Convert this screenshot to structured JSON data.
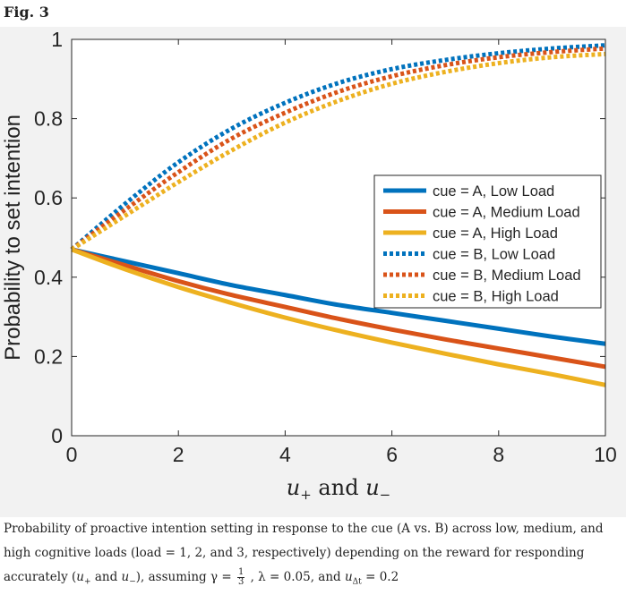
{
  "figure_label": "Fig. 3",
  "caption": {
    "line1": "Probability of proactive intention setting in response to the cue (A vs. B) across low, medium, and",
    "line2": "high cognitive loads (load = 1, 2, and 3, respectively) depending on the reward for responding",
    "line3_a": "accurately (",
    "u_plus": "u",
    "u_plus_sub": "+",
    "and_word": " and ",
    "u_minus": "u",
    "u_minus_sub": "−",
    "line3_b": "), assuming γ = ",
    "frac_num": "1",
    "frac_den": "3",
    "line3_c": " , λ = 0.05, and ",
    "u_dt": "u",
    "u_dt_sub": "Δt",
    "line3_d": " = 0.2"
  },
  "chart_data": {
    "type": "line",
    "title": "",
    "xlabel": "u₊ and u₋",
    "ylabel": "Probability to set intention",
    "xlim": [
      0,
      10
    ],
    "ylim": [
      0,
      1
    ],
    "xticks": [
      0,
      2,
      4,
      6,
      8,
      10
    ],
    "yticks": [
      0,
      0.2,
      0.4,
      0.6,
      0.8,
      1
    ],
    "xtick_labels": [
      "0",
      "2",
      "4",
      "6",
      "8",
      "10"
    ],
    "ytick_labels": [
      "0",
      "0.2",
      "0.4",
      "0.6",
      "0.8",
      "1"
    ],
    "grid": false,
    "legend_position": "right",
    "x": [
      0,
      1,
      2,
      3,
      4,
      5,
      6,
      7,
      8,
      9,
      10
    ],
    "series": [
      {
        "name": "cue = A, Low Load",
        "color": "#0072BD",
        "style": "solid",
        "values": [
          0.47,
          0.44,
          0.41,
          0.38,
          0.355,
          0.33,
          0.31,
          0.29,
          0.27,
          0.25,
          0.232
        ]
      },
      {
        "name": "cue = A, Medium Load",
        "color": "#D95319",
        "style": "solid",
        "values": [
          0.47,
          0.43,
          0.39,
          0.355,
          0.325,
          0.295,
          0.268,
          0.243,
          0.22,
          0.197,
          0.174
        ]
      },
      {
        "name": "cue = A, High Load",
        "color": "#EDB120",
        "style": "solid",
        "values": [
          0.47,
          0.42,
          0.375,
          0.335,
          0.298,
          0.265,
          0.235,
          0.207,
          0.18,
          0.155,
          0.128
        ]
      },
      {
        "name": "cue = B, Low Load",
        "color": "#0072BD",
        "style": "dotted",
        "values": [
          0.47,
          0.585,
          0.69,
          0.775,
          0.84,
          0.89,
          0.925,
          0.948,
          0.965,
          0.977,
          0.985
        ]
      },
      {
        "name": "cue = B, Medium Load",
        "color": "#D95319",
        "style": "dotted",
        "values": [
          0.47,
          0.57,
          0.665,
          0.75,
          0.815,
          0.868,
          0.907,
          0.935,
          0.955,
          0.968,
          0.977
        ]
      },
      {
        "name": "cue = B, High Load",
        "color": "#EDB120",
        "style": "dotted",
        "values": [
          0.47,
          0.555,
          0.64,
          0.72,
          0.79,
          0.845,
          0.888,
          0.918,
          0.94,
          0.955,
          0.963
        ]
      }
    ]
  }
}
